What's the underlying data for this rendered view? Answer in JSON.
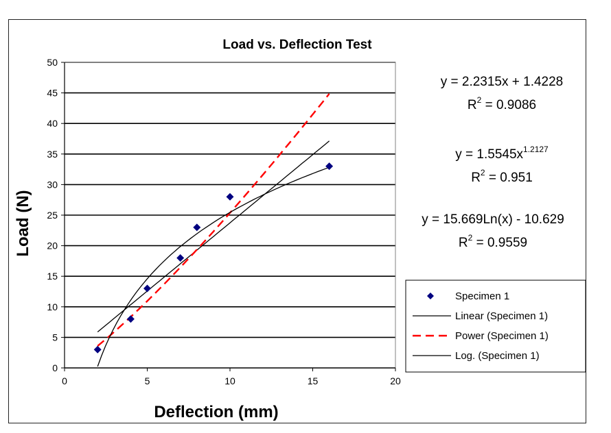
{
  "chart_data": {
    "type": "scatter",
    "title": "Load vs. Deflection Test",
    "xlabel": "Deflection (mm)",
    "ylabel": "Load (N)",
    "xlim": [
      0,
      20
    ],
    "ylim": [
      0,
      50
    ],
    "xticks": [
      0,
      5,
      10,
      15,
      20
    ],
    "yticks": [
      0,
      5,
      10,
      15,
      20,
      25,
      30,
      35,
      40,
      45,
      50
    ],
    "grid": "horizontal",
    "legend_position": "right",
    "series": [
      {
        "name": "Specimen 1",
        "kind": "points",
        "marker": "diamond",
        "color": "#000080",
        "x": [
          2,
          4,
          5,
          7,
          8,
          10,
          16
        ],
        "y": [
          3,
          8,
          13,
          18,
          23,
          28,
          33
        ]
      }
    ],
    "trendlines": [
      {
        "name": "Linear (Specimen 1)",
        "kind": "linear",
        "slope": 2.2315,
        "intercept": 1.4228,
        "color": "#000000",
        "dash": "solid",
        "x_range": [
          2,
          16
        ]
      },
      {
        "name": "Power (Specimen 1)",
        "kind": "power",
        "coef": 1.5545,
        "exponent": 1.2127,
        "color": "#ff0000",
        "dash": "dashed",
        "x_range": [
          2,
          16
        ]
      },
      {
        "name": "Log. (Specimen 1)",
        "kind": "log",
        "coef": 15.669,
        "intercept": -10.629,
        "color": "#000000",
        "dash": "solid",
        "x_range": [
          2,
          16
        ]
      }
    ],
    "equations": [
      {
        "eq": "y = 2.2315x + 1.4228",
        "r2_prefix": "R",
        "r2_sup": "2",
        "r2_value": " = 0.9086"
      },
      {
        "eq": "y = 1.5545x",
        "eq_sup": "1.2127",
        "r2_prefix": "R",
        "r2_sup": "2",
        "r2_value": " = 0.951"
      },
      {
        "eq": "y = 15.669Ln(x) - 10.629",
        "r2_prefix": "R",
        "r2_sup": "2",
        "r2_value": " = 0.9559"
      }
    ]
  }
}
